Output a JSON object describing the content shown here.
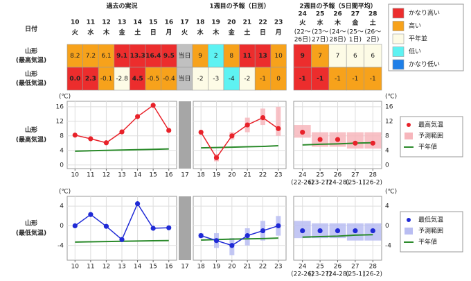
{
  "header": {
    "past": "過去の実況",
    "week1": "1週目の予報（日別）",
    "week2": "2週目の予報（5日間平均）",
    "date_label": "日付"
  },
  "days": [
    {
      "day": "10",
      "weekday": "火"
    },
    {
      "day": "11",
      "weekday": "水"
    },
    {
      "day": "12",
      "weekday": "木"
    },
    {
      "day": "13",
      "weekday": "金"
    },
    {
      "day": "14",
      "weekday": "土"
    },
    {
      "day": "15",
      "weekday": "日"
    },
    {
      "day": "16",
      "weekday": "月"
    },
    {
      "day": "17",
      "weekday": "火"
    },
    {
      "day": "18",
      "weekday": "水"
    },
    {
      "day": "19",
      "weekday": "木"
    },
    {
      "day": "20",
      "weekday": "金"
    },
    {
      "day": "21",
      "weekday": "土"
    },
    {
      "day": "22",
      "weekday": "日"
    },
    {
      "day": "23",
      "weekday": "月"
    },
    {
      "day": "24",
      "weekday": "火",
      "period": [
        "(22〜",
        "26日)"
      ]
    },
    {
      "day": "25",
      "weekday": "水",
      "period": [
        "(23〜",
        "27日)"
      ]
    },
    {
      "day": "26",
      "weekday": "木",
      "period": [
        "(24〜",
        "28日)"
      ]
    },
    {
      "day": "27",
      "weekday": "金",
      "period": [
        "(25〜",
        "1日)"
      ]
    },
    {
      "day": "28",
      "weekday": "土",
      "period": [
        "(26〜",
        "2日)"
      ]
    }
  ],
  "legend": [
    {
      "name": "かなり高い",
      "color": "#ec2d2d"
    },
    {
      "name": "高い",
      "color": "#f7a21b"
    },
    {
      "name": "平年並",
      "color": "#fdfbe6"
    },
    {
      "name": "低い",
      "color": "#5ef2f2"
    },
    {
      "name": "かなり低い",
      "color": "#1e7fe8"
    }
  ],
  "table": {
    "rows": [
      {
        "label": [
          "山形",
          "(最高気温)"
        ],
        "cells": [
          {
            "text": "8.2",
            "color": "#f7a21b"
          },
          {
            "text": "7.2",
            "color": "#f7a21b"
          },
          {
            "text": "6.1",
            "color": "#f7a21b"
          },
          {
            "text": "9.1",
            "color": "#ec2d2d"
          },
          {
            "text": "13.3",
            "color": "#ec2d2d"
          },
          {
            "text": "16.4",
            "color": "#ec2d2d"
          },
          {
            "text": "9.5",
            "color": "#ec2d2d"
          },
          {
            "text": "当日",
            "color": "#c0c0c0"
          },
          {
            "text": "9",
            "color": "#f7a21b"
          },
          {
            "text": "2",
            "color": "#5ef2f2"
          },
          {
            "text": "8",
            "color": "#f7a21b"
          },
          {
            "text": "11",
            "color": "#ec2d2d"
          },
          {
            "text": "13",
            "color": "#ec2d2d"
          },
          {
            "text": "10",
            "color": "#f7a21b"
          },
          {
            "text": "9",
            "color": "#ec2d2d"
          },
          {
            "text": "7",
            "color": "#f7a21b"
          },
          {
            "text": "7",
            "color": "#fdfbe6"
          },
          {
            "text": "6",
            "color": "#fdfbe6"
          },
          {
            "text": "6",
            "color": "#fdfbe6"
          }
        ]
      },
      {
        "label": [
          "山形",
          "(最低気温)"
        ],
        "cells": [
          {
            "text": "0.0",
            "color": "#ec2d2d"
          },
          {
            "text": "2.3",
            "color": "#ec2d2d"
          },
          {
            "text": "-0.1",
            "color": "#f7a21b"
          },
          {
            "text": "-2.8",
            "color": "#fdfbe6"
          },
          {
            "text": "4.5",
            "color": "#ec2d2d"
          },
          {
            "text": "-0.5",
            "color": "#f7a21b"
          },
          {
            "text": "-0.4",
            "color": "#f7a21b"
          },
          {
            "text": "当日",
            "color": "#c0c0c0"
          },
          {
            "text": "-2",
            "color": "#fdfbe6"
          },
          {
            "text": "-3",
            "color": "#fdfbe6"
          },
          {
            "text": "-4",
            "color": "#5ef2f2"
          },
          {
            "text": "-2",
            "color": "#fdfbe6"
          },
          {
            "text": "-1",
            "color": "#f7a21b"
          },
          {
            "text": "0",
            "color": "#f7a21b"
          },
          {
            "text": "-1",
            "color": "#ec2d2d"
          },
          {
            "text": "-1",
            "color": "#ec2d2d"
          },
          {
            "text": "-1",
            "color": "#f7a21b"
          },
          {
            "text": "-1",
            "color": "#f7a21b"
          },
          {
            "text": "-1",
            "color": "#f7a21b"
          }
        ]
      }
    ]
  },
  "chart_data": [
    {
      "type": "line",
      "ylabel": [
        "山形",
        "(最高気温)"
      ],
      "yunit": "(℃)",
      "yaxis_side": "left",
      "grid": true,
      "categories": [
        "10",
        "11",
        "12",
        "13",
        "14",
        "15",
        "16"
      ],
      "ylim": [
        -1,
        17.5
      ],
      "yticks": [
        0,
        4,
        8,
        12,
        16
      ],
      "series": [
        {
          "color": "#e8222a",
          "values": [
            8.2,
            7.2,
            6.1,
            9.1,
            13.3,
            16.4,
            9.5
          ]
        }
      ],
      "normal": {
        "color": "#2a8a2a",
        "values": [
          3.8,
          3.9,
          4.0,
          4.1,
          4.2,
          4.3,
          4.4
        ]
      }
    },
    {
      "type": "gap",
      "categories": [
        "17"
      ],
      "color": "#a6a6a6"
    },
    {
      "type": "line",
      "yaxis_side": "none",
      "grid": true,
      "categories": [
        "18",
        "19",
        "20",
        "21",
        "22",
        "23"
      ],
      "ylim": [
        -1,
        17.5
      ],
      "yticks": [
        0,
        4,
        8,
        12,
        16
      ],
      "series": [
        {
          "color": "#e8222a",
          "values": [
            9,
            2,
            8,
            11,
            13,
            10
          ]
        }
      ],
      "range": {
        "color": "#f7b6bc",
        "low": [
          null,
          1,
          7,
          9,
          11,
          8
        ],
        "high": [
          null,
          3,
          9,
          13,
          15.5,
          16
        ]
      },
      "normal": {
        "color": "#2a8a2a",
        "values": [
          4.7,
          4.8,
          4.9,
          5.0,
          5.1,
          5.3
        ]
      }
    },
    {
      "type": "scatter",
      "yunit": "(℃)",
      "yaxis_side": "right",
      "grid": true,
      "legend": true,
      "categories": [
        "24",
        "25",
        "26",
        "27",
        "28"
      ],
      "category_notes": [
        "(22-26)",
        "(23-27)",
        "(24-28)",
        "(25-1)",
        "(26-2)"
      ],
      "ylim": [
        -1,
        17.5
      ],
      "yticks": [
        0,
        4,
        8,
        12,
        16
      ],
      "series": [
        {
          "name": "最高気温",
          "color": "#e8222a",
          "values": [
            9,
            7,
            7,
            6,
            6
          ]
        }
      ],
      "range": {
        "name": "予測範囲",
        "color": "#f7b6bc",
        "low": [
          7.5,
          5,
          5,
          4.5,
          4.5
        ],
        "high": [
          11,
          9,
          9,
          9,
          9
        ]
      },
      "normal": {
        "name": "平年値",
        "color": "#2a8a2a",
        "values": [
          5.5,
          5.7,
          5.8,
          6.0,
          6.1
        ]
      }
    },
    {
      "type": "line",
      "ylabel": [
        "山形",
        "(最低気温)"
      ],
      "yunit": "(℃)",
      "yaxis_side": "left",
      "grid": true,
      "categories": [
        "10",
        "11",
        "12",
        "13",
        "14",
        "15",
        "16"
      ],
      "ylim": [
        -7,
        6
      ],
      "yticks": [
        -4,
        0,
        4
      ],
      "series": [
        {
          "color": "#1f2ad6",
          "values": [
            0,
            2.3,
            -0.1,
            -2.8,
            4.5,
            -0.5,
            -0.4
          ]
        }
      ],
      "normal": {
        "color": "#2a8a2a",
        "values": [
          -3.3,
          -3.25,
          -3.2,
          -3.15,
          -3.1,
          -3.05,
          -3.0
        ]
      }
    },
    {
      "type": "gap",
      "categories": [
        "17"
      ],
      "color": "#a6a6a6"
    },
    {
      "type": "line",
      "yaxis_side": "none",
      "grid": true,
      "categories": [
        "18",
        "19",
        "20",
        "21",
        "22",
        "23"
      ],
      "ylim": [
        -7,
        6
      ],
      "yticks": [
        -4,
        0,
        4
      ],
      "series": [
        {
          "color": "#1f2ad6",
          "values": [
            -2,
            -3,
            -4,
            -2,
            -1,
            0
          ]
        }
      ],
      "range": {
        "color": "#b9bdf2",
        "low": [
          -2.5,
          -4.5,
          -6,
          -4,
          -3,
          -2
        ],
        "high": [
          -1.5,
          -1.5,
          -2.5,
          -0.5,
          1,
          2
        ]
      },
      "normal": {
        "color": "#2a8a2a",
        "values": [
          -2.9,
          -2.8,
          -2.7,
          -2.65,
          -2.6,
          -2.5
        ]
      }
    },
    {
      "type": "scatter",
      "yunit": "(℃)",
      "yaxis_side": "right",
      "grid": true,
      "legend": true,
      "categories": [
        "24",
        "25",
        "26",
        "27",
        "28"
      ],
      "category_notes": [
        "(22-26)",
        "(23-27)",
        "(24-28)",
        "(25-1)",
        "(26-2)"
      ],
      "ylim": [
        -7,
        6
      ],
      "yticks": [
        -4,
        0,
        4
      ],
      "series": [
        {
          "name": "最低気温",
          "color": "#1f2ad6",
          "values": [
            -1,
            -1,
            -1,
            -1,
            -1
          ]
        }
      ],
      "range": {
        "name": "予測範囲",
        "color": "#b9bdf2",
        "low": [
          -2.5,
          -2.5,
          -2.5,
          -3,
          -3
        ],
        "high": [
          1,
          0.5,
          0.5,
          0.5,
          0.5
        ]
      },
      "normal": {
        "name": "平年値",
        "color": "#2a8a2a",
        "values": [
          -2.3,
          -2.2,
          -2.1,
          -1.9,
          -1.8
        ]
      }
    }
  ]
}
